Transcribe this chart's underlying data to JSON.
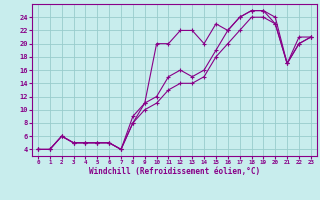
{
  "xlabel": "Windchill (Refroidissement éolien,°C)",
  "bg_color": "#c8eded",
  "line_color": "#880088",
  "grid_color": "#99cccc",
  "xlim": [
    -0.5,
    23.5
  ],
  "ylim": [
    3,
    26
  ],
  "yticks": [
    4,
    6,
    8,
    10,
    12,
    14,
    16,
    18,
    20,
    22,
    24
  ],
  "xticks": [
    0,
    1,
    2,
    3,
    4,
    5,
    6,
    7,
    8,
    9,
    10,
    11,
    12,
    13,
    14,
    15,
    16,
    17,
    18,
    19,
    20,
    21,
    22,
    23
  ],
  "series": [
    {
      "x": [
        0,
        1,
        2,
        3,
        4,
        5,
        6,
        7,
        8,
        9,
        10,
        11,
        12,
        13,
        14,
        15,
        16,
        17,
        18,
        19,
        20,
        21,
        22,
        23
      ],
      "y": [
        4,
        4,
        6,
        5,
        5,
        5,
        5,
        4,
        8,
        11,
        20,
        20,
        22,
        22,
        20,
        23,
        22,
        24,
        25,
        25,
        23,
        17,
        21,
        21
      ]
    },
    {
      "x": [
        0,
        1,
        2,
        3,
        4,
        5,
        6,
        7,
        8,
        9,
        10,
        11,
        12,
        13,
        14,
        15,
        16,
        17,
        18,
        19,
        20,
        21,
        22,
        23
      ],
      "y": [
        4,
        4,
        6,
        5,
        5,
        5,
        5,
        4,
        9,
        11,
        12,
        15,
        16,
        15,
        16,
        19,
        22,
        24,
        25,
        25,
        24,
        17,
        20,
        21
      ]
    },
    {
      "x": [
        0,
        1,
        2,
        3,
        4,
        5,
        6,
        7,
        8,
        9,
        10,
        11,
        12,
        13,
        14,
        15,
        16,
        17,
        18,
        19,
        20,
        21,
        22,
        23
      ],
      "y": [
        4,
        4,
        6,
        5,
        5,
        5,
        5,
        4,
        8,
        10,
        11,
        13,
        14,
        14,
        15,
        18,
        20,
        22,
        24,
        24,
        23,
        17,
        20,
        21
      ]
    }
  ]
}
